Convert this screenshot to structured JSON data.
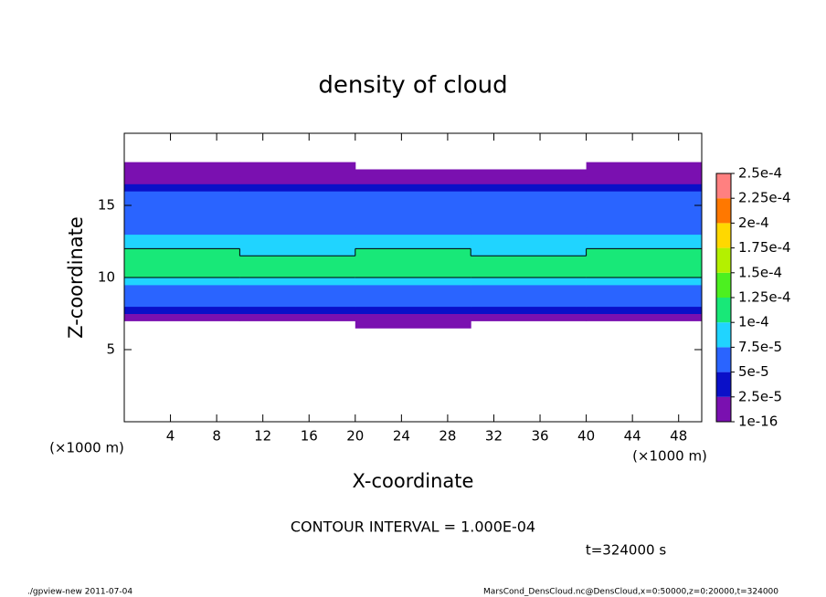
{
  "chart_data": {
    "type": "contour",
    "title": "density of cloud",
    "xlabel": "X-coordinate",
    "ylabel": "Z-coordinate",
    "x_unit_left": "(×1000 m)",
    "x_unit_right": "(×1000 m)",
    "contour_note": "CONTOUR INTERVAL = 1.000E-04",
    "time_note": "t=324000 s",
    "footer_left": "./gpview-new  2011-07-04",
    "footer_right": "MarsCond_DensCloud.nc@DensCloud,x=0:50000,z=0:20000,t=324000",
    "xlim": [
      0,
      50
    ],
    "ylim": [
      0,
      20
    ],
    "xticks": [
      4,
      8,
      12,
      16,
      20,
      24,
      28,
      32,
      36,
      40,
      44,
      48
    ],
    "yticks": [
      5,
      10,
      15
    ],
    "x": [
      5,
      15,
      25,
      35,
      45
    ],
    "z": [
      6.25,
      6.75,
      7.25,
      7.75,
      8.25,
      8.75,
      9.25,
      9.75,
      10.25,
      10.75,
      11.25,
      11.75,
      12.25,
      12.75,
      13.25,
      13.75,
      14.25,
      14.75,
      15.25,
      15.75,
      16.25,
      16.75,
      17.25,
      17.75
    ],
    "values": [
      [
        0,
        0,
        0,
        0,
        0
      ],
      [
        0,
        0,
        1e-10,
        0,
        0
      ],
      [
        1e-10,
        1e-10,
        1e-10,
        1e-10,
        1e-10
      ],
      [
        3e-05,
        3e-05,
        3.5e-05,
        3e-05,
        3e-05
      ],
      [
        5.5e-05,
        5.2e-05,
        5.5e-05,
        5.3e-05,
        5.5e-05
      ],
      [
        6e-05,
        6.2e-05,
        6e-05,
        6.1e-05,
        6e-05
      ],
      [
        7e-05,
        7.2e-05,
        7e-05,
        7.3e-05,
        7e-05
      ],
      [
        8.5e-05,
        9e-05,
        8.8e-05,
        9.2e-05,
        8.5e-05
      ],
      [
        0.000105,
        0.000102,
        0.000106,
        0.000105,
        0.000103
      ],
      [
        0.000115,
        0.000112,
        0.000115,
        0.000118,
        0.000112
      ],
      [
        0.00011,
        0.000108,
        0.000112,
        0.00011,
        0.000108
      ],
      [
        0.000102,
        9.5e-05,
        0.000105,
        9e-05,
        0.000102
      ],
      [
        9e-05,
        8.8e-05,
        9.2e-05,
        8.6e-05,
        9e-05
      ],
      [
        8e-05,
        7.8e-05,
        8e-05,
        7.6e-05,
        8e-05
      ],
      [
        7e-05,
        6.8e-05,
        7e-05,
        6.6e-05,
        7e-05
      ],
      [
        6.2e-05,
        6e-05,
        6.2e-05,
        6e-05,
        6.2e-05
      ],
      [
        6e-05,
        6e-05,
        6.1e-05,
        5.8e-05,
        6e-05
      ],
      [
        6e-05,
        5.8e-05,
        6e-05,
        5.8e-05,
        6e-05
      ],
      [
        5.8e-05,
        5.6e-05,
        5.8e-05,
        5.7e-05,
        5.8e-05
      ],
      [
        5.5e-05,
        5.3e-05,
        5.5e-05,
        5.2e-05,
        5.5e-05
      ],
      [
        3e-05,
        3e-05,
        3e-05,
        3e-05,
        3e-05
      ],
      [
        1e-10,
        1e-10,
        1e-10,
        1e-10,
        1e-10
      ],
      [
        1e-10,
        1e-10,
        1e-10,
        1e-10,
        1e-10
      ],
      [
        1e-10,
        1e-10,
        0,
        0,
        1e-10
      ]
    ],
    "contour_levels": [
      0.0001
    ],
    "colorbar": {
      "levels": [
        {
          "value": 1e-16,
          "label": "1e-16"
        },
        {
          "value": 2.5e-05,
          "label": "2.5e-5"
        },
        {
          "value": 5e-05,
          "label": "5e-5"
        },
        {
          "value": 7.5e-05,
          "label": "7.5e-5"
        },
        {
          "value": 0.0001,
          "label": "1e-4"
        },
        {
          "value": 0.000125,
          "label": "1.25e-4"
        },
        {
          "value": 0.00015,
          "label": "1.5e-4"
        },
        {
          "value": 0.000175,
          "label": "1.75e-4"
        },
        {
          "value": 0.0002,
          "label": "2e-4"
        },
        {
          "value": 0.000225,
          "label": "2.25e-4"
        },
        {
          "value": 0.00025,
          "label": "2.5e-4"
        }
      ],
      "colors": [
        "#7a10b0",
        "#0a10c8",
        "#2a64ff",
        "#20d4ff",
        "#18e878",
        "#4cf020",
        "#b4f000",
        "#ffd800",
        "#ff7800",
        "#ff8080"
      ]
    }
  }
}
